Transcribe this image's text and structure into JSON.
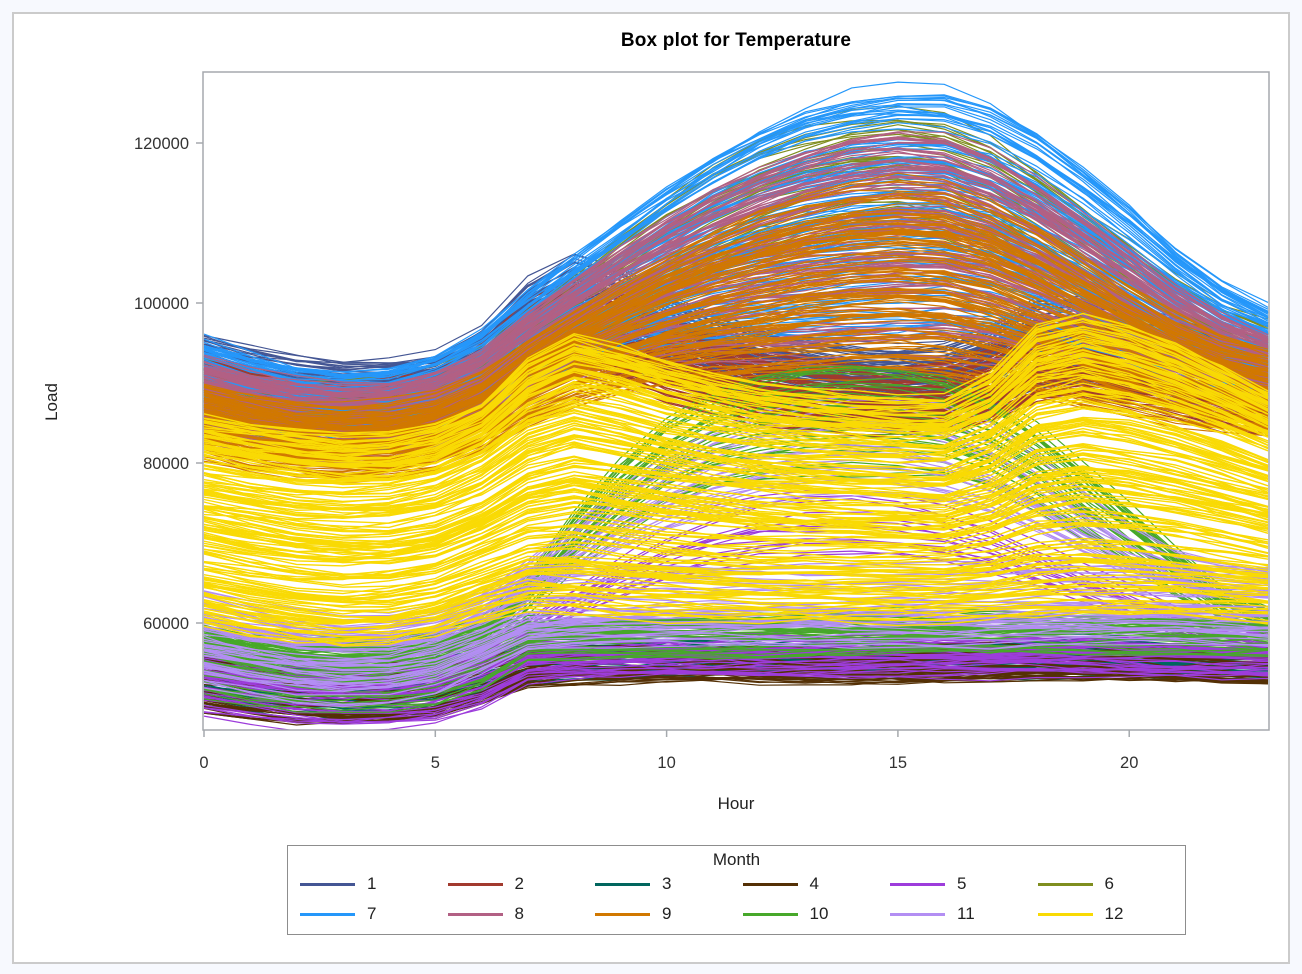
{
  "window": {
    "outer_background": "#f7f9fe",
    "panel_background": "#ffffff",
    "panel_border_color": "#cbcbcb"
  },
  "chart_data": {
    "type": "line",
    "title": "Box plot for Temperature",
    "xlabel": "Hour",
    "ylabel": "Load",
    "xlim": [
      0,
      23
    ],
    "ylim": [
      46600,
      128900
    ],
    "x_ticks": [
      "0",
      "5",
      "10",
      "15",
      "20"
    ],
    "x_tick_values": [
      0,
      5,
      10,
      15,
      20
    ],
    "y_ticks": [
      "60000",
      "80000",
      "100000",
      "120000"
    ],
    "y_tick_values": [
      60000,
      80000,
      100000,
      120000
    ],
    "grid": false,
    "axis_color": "#a5a9ad",
    "tick_label_color": "#333333",
    "default_stroke_width": 1.2,
    "legend": {
      "title": "Month",
      "position": "bottom",
      "rows": 2,
      "columns": 6
    },
    "description": "Spaghetti plot of many daily load profiles (Load vs Hour) grouped and colored by Month 1-12; lo/hi are the estimated per-hour envelopes of each month's bundle of daily curves, hi_warm is the upper envelope for that month's warmer days (fraction warm_frac).",
    "series_by_month": [
      {
        "label": "1",
        "color": "#445694",
        "count": 90,
        "lo": [
          86000,
          85000,
          84300,
          84000,
          84200,
          85000,
          87000,
          91000,
          93000,
          92000,
          90000,
          88500,
          87000,
          86200,
          85800,
          85500,
          85800,
          87000,
          89500,
          90000,
          89000,
          88000,
          86500,
          85500
        ],
        "hi": [
          96000,
          94500,
          93500,
          93000,
          93200,
          94000,
          97000,
          103000,
          106000,
          104500,
          101000,
          99000,
          97000,
          96000,
          95000,
          94500,
          95000,
          97000,
          100500,
          101000,
          100000,
          98500,
          96500,
          95500
        ]
      },
      {
        "label": "2",
        "color": "#A23A2E",
        "count": 90,
        "lo": [
          84000,
          83000,
          82300,
          82000,
          82200,
          83000,
          85000,
          89000,
          91000,
          90000,
          88000,
          86500,
          85000,
          84200,
          83800,
          83500,
          83800,
          85000,
          87500,
          88000,
          87000,
          86000,
          84500,
          83500
        ],
        "hi": [
          93000,
          91500,
          90500,
          90000,
          90200,
          91000,
          94000,
          100000,
          103000,
          101500,
          98000,
          96000,
          94000,
          93000,
          92000,
          91500,
          92000,
          94000,
          97500,
          98000,
          97000,
          95500,
          93500,
          92500
        ]
      },
      {
        "label": "3",
        "color": "#01665E",
        "count": 55,
        "lo": [
          50000,
          49000,
          48300,
          48000,
          48200,
          48800,
          50500,
          52800,
          53000,
          53100,
          53200,
          53200,
          53200,
          53200,
          53200,
          53300,
          53300,
          53300,
          53400,
          53400,
          53300,
          53200,
          53100,
          53000
        ],
        "hi": [
          57000,
          56000,
          55600,
          55400,
          55500,
          56000,
          56800,
          57800,
          58000,
          58000,
          58000,
          58000,
          58000,
          58000,
          58000,
          58000,
          58000,
          58000,
          58200,
          58200,
          58100,
          58000,
          57800,
          57600
        ]
      },
      {
        "label": "4",
        "color": "#543005",
        "count": 55,
        "lo": [
          49000,
          48200,
          47700,
          47500,
          47600,
          48200,
          50000,
          52300,
          52600,
          52700,
          52800,
          52800,
          52800,
          52800,
          52800,
          52900,
          52900,
          52900,
          53000,
          53000,
          52900,
          52800,
          52700,
          52600
        ],
        "hi": [
          56000,
          55000,
          54400,
          54200,
          54300,
          54800,
          55600,
          56400,
          56600,
          56700,
          56800,
          56800,
          56800,
          56800,
          56800,
          56900,
          56900,
          56900,
          57000,
          57000,
          56900,
          56800,
          56700,
          56600
        ]
      },
      {
        "label": "5",
        "color": "#9D3CDB",
        "count": 60,
        "warm_frac": 0.25,
        "lo": [
          48500,
          47600,
          47000,
          46800,
          46900,
          47500,
          49300,
          52800,
          53100,
          53200,
          53300,
          53300,
          53300,
          53300,
          53300,
          53400,
          53400,
          53400,
          53500,
          53500,
          53400,
          53300,
          53200,
          53100
        ],
        "hi": [
          57500,
          56400,
          55600,
          55200,
          55400,
          56000,
          57000,
          58200,
          58400,
          58500,
          58500,
          58500,
          58500,
          58500,
          58500,
          58600,
          58600,
          58600,
          58700,
          58700,
          58600,
          58500,
          58400,
          58300
        ],
        "hi_warm": [
          57500,
          56400,
          55600,
          55200,
          55400,
          56000,
          57500,
          61000,
          65000,
          69000,
          72500,
          75000,
          76500,
          77300,
          77500,
          77000,
          75800,
          73800,
          71000,
          68000,
          65000,
          62000,
          60000,
          58800
        ]
      },
      {
        "label": "6",
        "color": "#7F8E1F",
        "count": 40,
        "lo": [
          85000,
          83500,
          82500,
          82000,
          82300,
          83500,
          86000,
          90000,
          94000,
          97000,
          100000,
          103000,
          105500,
          107000,
          108000,
          108300,
          107500,
          105500,
          102500,
          99500,
          96500,
          93500,
          91000,
          89500
        ],
        "hi": [
          93000,
          91500,
          90500,
          90000,
          90300,
          91500,
          94000,
          99000,
          104000,
          109000,
          113500,
          117500,
          120500,
          122500,
          123800,
          124200,
          123500,
          121000,
          117000,
          112500,
          108000,
          103500,
          100000,
          97500
        ]
      },
      {
        "label": "7",
        "color": "#2597FA",
        "count": 110,
        "lo": [
          84000,
          82500,
          81500,
          81000,
          81300,
          82500,
          85000,
          88500,
          91000,
          92800,
          93800,
          94300,
          94300,
          94000,
          94000,
          94200,
          94800,
          94500,
          93500,
          92300,
          91200,
          90000,
          88800,
          88000
        ],
        "hi": [
          95500,
          93800,
          92500,
          91800,
          92000,
          93500,
          96500,
          101500,
          106000,
          110500,
          115000,
          119000,
          122500,
          125300,
          127000,
          127800,
          127500,
          125500,
          122000,
          117500,
          112500,
          107000,
          102500,
          99500
        ]
      },
      {
        "label": "8",
        "color": "#B26084",
        "count": 110,
        "lo": [
          83000,
          81600,
          80600,
          80200,
          80400,
          81600,
          84000,
          87300,
          89800,
          91300,
          92100,
          92500,
          92500,
          92300,
          92300,
          92500,
          92800,
          92500,
          91800,
          90800,
          89800,
          87800,
          86600,
          86000
        ],
        "hi": [
          93000,
          91400,
          90200,
          89600,
          89800,
          91200,
          94000,
          98800,
          103000,
          107000,
          110800,
          114200,
          117000,
          119300,
          121000,
          121800,
          121300,
          119000,
          115300,
          111000,
          106500,
          102000,
          98500,
          96000
        ]
      },
      {
        "label": "9",
        "color": "#D17800",
        "count": 110,
        "lo": [
          80500,
          79200,
          78300,
          78000,
          78200,
          79200,
          81500,
          84800,
          87300,
          88800,
          89800,
          90300,
          90500,
          90800,
          91000,
          91000,
          90500,
          89500,
          88300,
          87000,
          85800,
          84800,
          84000,
          83600
        ],
        "hi": [
          90000,
          88600,
          87500,
          87000,
          87200,
          88500,
          91000,
          95300,
          99000,
          102500,
          105800,
          108800,
          111300,
          113300,
          114600,
          115200,
          114800,
          112800,
          109500,
          105800,
          102000,
          98500,
          95800,
          94000
        ]
      },
      {
        "label": "10",
        "color": "#47A82A",
        "count": 80,
        "warm_frac": 0.45,
        "lo": [
          50500,
          49600,
          49000,
          48800,
          48900,
          49500,
          51500,
          55300,
          55800,
          55900,
          56000,
          56000,
          56000,
          56000,
          56000,
          56100,
          56100,
          56100,
          56200,
          56200,
          56100,
          56000,
          55900,
          55800
        ],
        "hi": [
          60500,
          59200,
          58300,
          58000,
          58200,
          59000,
          60000,
          60800,
          61000,
          61100,
          61200,
          61200,
          61200,
          61200,
          61200,
          61300,
          61300,
          61300,
          61500,
          61500,
          61400,
          61300,
          61100,
          61000
        ],
        "hi_warm": [
          60500,
          59200,
          58300,
          58000,
          58200,
          59000,
          60500,
          66000,
          74000,
          81000,
          86500,
          90000,
          92000,
          93000,
          93300,
          93000,
          92000,
          89500,
          85500,
          80500,
          75000,
          69500,
          64500,
          61500
        ]
      },
      {
        "label": "11",
        "color": "#B38EF3",
        "count": 70,
        "warm_frac": 0.3,
        "lo": [
          52000,
          51000,
          50200,
          49800,
          50000,
          51000,
          53500,
          56300,
          56800,
          56900,
          57000,
          57000,
          57000,
          57000,
          57000,
          57100,
          57100,
          57100,
          57200,
          57200,
          57100,
          57000,
          56900,
          56800
        ],
        "hi": [
          63500,
          62200,
          61200,
          60800,
          61000,
          62000,
          64000,
          66300,
          67000,
          67200,
          67300,
          67300,
          67300,
          67300,
          67300,
          67400,
          67400,
          67500,
          67800,
          67800,
          67600,
          67400,
          67200,
          67000
        ],
        "hi_warm": [
          63500,
          62200,
          61200,
          60800,
          61000,
          62000,
          64000,
          68000,
          73000,
          78000,
          82000,
          85000,
          87000,
          88300,
          88800,
          88300,
          87000,
          84500,
          80500,
          76000,
          72000,
          69000,
          67800,
          67000
        ]
      },
      {
        "label": "12",
        "color": "#F9DA04",
        "count": 170,
        "stroke": 1.4,
        "lo": [
          60000,
          58800,
          57800,
          57300,
          57500,
          58500,
          60500,
          61800,
          61500,
          61000,
          60800,
          60600,
          60500,
          60500,
          60500,
          60500,
          60500,
          60600,
          60800,
          61000,
          61000,
          60900,
          60700,
          60500
        ],
        "hi": [
          86000,
          85000,
          84200,
          83800,
          84000,
          85200,
          88000,
          93500,
          96500,
          95000,
          93000,
          91500,
          90300,
          89500,
          89000,
          88600,
          88500,
          91500,
          97500,
          99000,
          97500,
          95300,
          92500,
          89500
        ]
      }
    ]
  }
}
